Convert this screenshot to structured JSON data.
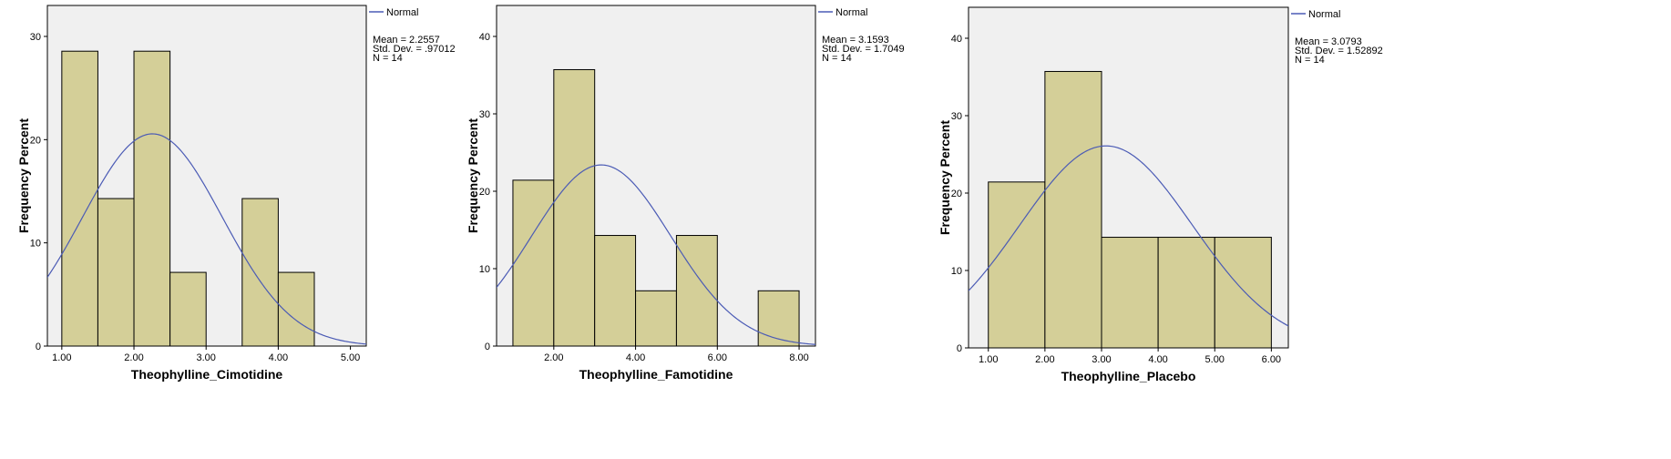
{
  "colors": {
    "plot_bg": "#f0f0f0",
    "bar_fill": "#d4cf98",
    "bar_stroke": "#000000",
    "curve": "#4b5bb5"
  },
  "chart_data": [
    {
      "type": "bar",
      "subtype": "histogram",
      "xlabel": "Theophylline_Cimotidine",
      "ylabel": "Frequency Percent",
      "xlim": [
        0.8,
        5.22
      ],
      "ylim": [
        0,
        33
      ],
      "xticks": [
        "1.00",
        "2.00",
        "3.00",
        "4.00",
        "5.00"
      ],
      "yticks": [
        "0",
        "10",
        "20",
        "30"
      ],
      "bins": [
        [
          1.0,
          1.5
        ],
        [
          1.5,
          2.0
        ],
        [
          2.0,
          2.5
        ],
        [
          2.5,
          3.0
        ],
        [
          3.5,
          4.0
        ],
        [
          4.0,
          4.5
        ]
      ],
      "values": [
        28.57,
        14.29,
        28.57,
        7.14,
        14.29,
        7.14
      ],
      "bin_width": 0.5,
      "legend": {
        "label": "Normal",
        "position": "top-right"
      },
      "stats": {
        "mean": "Mean = 2.2557",
        "sd": "Std. Dev. = .97012",
        "n": "N = 14"
      },
      "normal": {
        "mean": 2.2557,
        "sd": 0.97012
      },
      "grid": false
    },
    {
      "type": "bar",
      "subtype": "histogram",
      "xlabel": "Theophylline_Famotidine",
      "ylabel": "Frequency Percent",
      "xlim": [
        0.6,
        8.4
      ],
      "ylim": [
        0,
        44
      ],
      "xticks": [
        "2.00",
        "4.00",
        "6.00",
        "8.00"
      ],
      "yticks": [
        "0",
        "10",
        "20",
        "30",
        "40"
      ],
      "bins": [
        [
          1,
          2
        ],
        [
          2,
          3
        ],
        [
          3,
          4
        ],
        [
          4,
          5
        ],
        [
          5,
          6
        ],
        [
          7,
          8
        ]
      ],
      "values": [
        21.43,
        35.71,
        14.29,
        7.14,
        14.29,
        7.14
      ],
      "bin_width": 1,
      "legend": {
        "label": "Normal",
        "position": "top-right"
      },
      "stats": {
        "mean": "Mean = 3.1593",
        "sd": "Std. Dev. = 1.7049",
        "n": "N = 14"
      },
      "normal": {
        "mean": 3.1593,
        "sd": 1.7049
      },
      "grid": false
    },
    {
      "type": "bar",
      "subtype": "histogram",
      "xlabel": "Theophylline_Placebo",
      "ylabel": "Frequency Percent",
      "xlim": [
        0.65,
        6.3
      ],
      "ylim": [
        0,
        44
      ],
      "xticks": [
        "1.00",
        "2.00",
        "3.00",
        "4.00",
        "5.00",
        "6.00"
      ],
      "yticks": [
        "0",
        "10",
        "20",
        "30",
        "40"
      ],
      "bins": [
        [
          1,
          2
        ],
        [
          2,
          3
        ],
        [
          3,
          4
        ],
        [
          4,
          5
        ],
        [
          5,
          6
        ]
      ],
      "values": [
        21.43,
        35.71,
        14.29,
        14.29,
        14.29
      ],
      "bin_width": 1,
      "legend": {
        "label": "Normal",
        "position": "top-right"
      },
      "stats": {
        "mean": "Mean = 3.0793",
        "sd": "Std. Dev. = 1.52892",
        "n": "N = 14"
      },
      "normal": {
        "mean": 3.0793,
        "sd": 1.52892
      },
      "grid": false
    }
  ]
}
